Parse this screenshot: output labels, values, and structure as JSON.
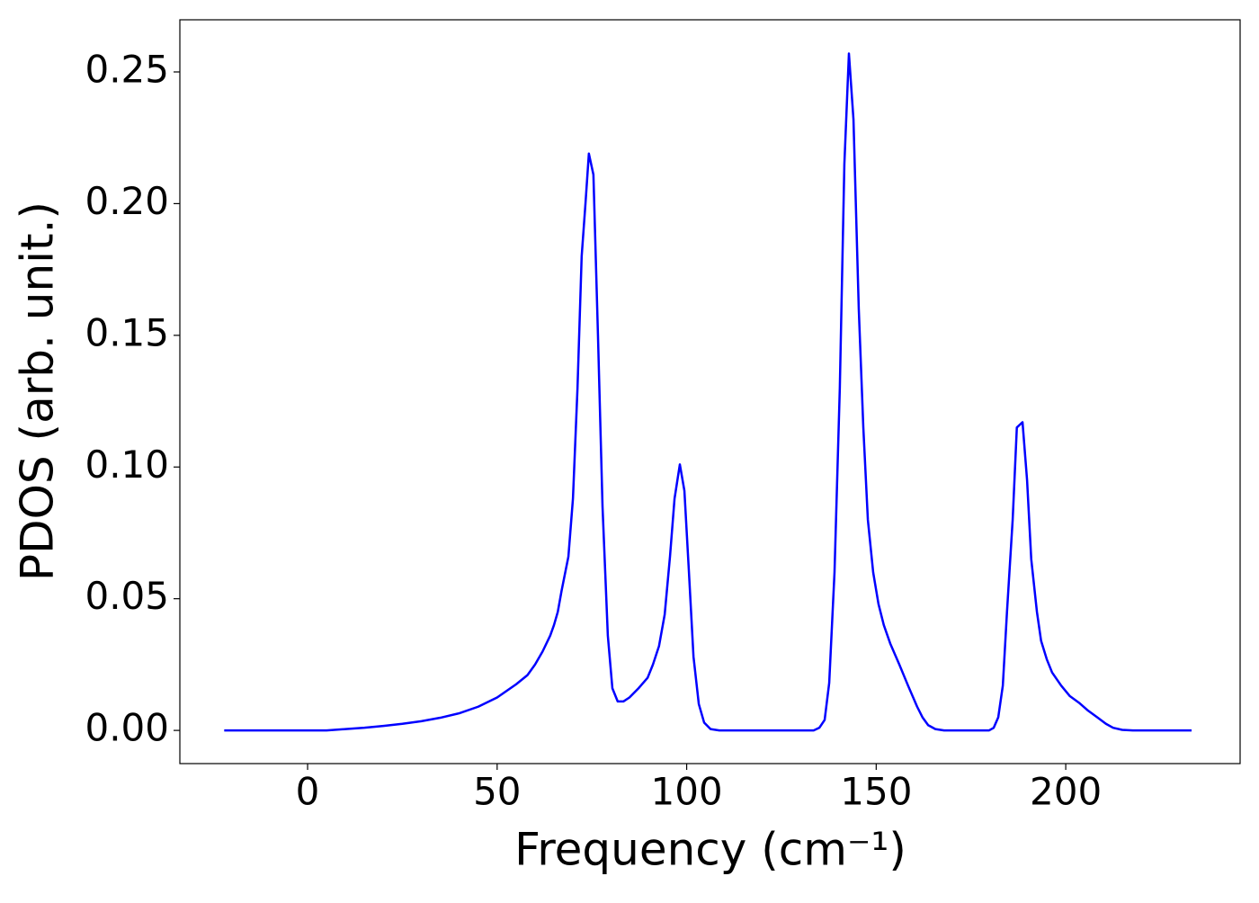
{
  "chart_data": {
    "type": "line",
    "xlabel": "Frequency (cm⁻¹)",
    "ylabel": "PDOS (arb. unit.)",
    "xlim": [
      -33.7,
      246.0
    ],
    "ylim": [
      -0.0126,
      0.2698
    ],
    "xticks": [
      0,
      50,
      100,
      150,
      200
    ],
    "yticks": [
      {
        "value": 0,
        "label": "0.00"
      },
      {
        "value": 0.05,
        "label": "0.05"
      },
      {
        "value": 0.1,
        "label": "0.10"
      },
      {
        "value": 0.15,
        "label": "0.15"
      },
      {
        "value": 0.2,
        "label": "0.20"
      },
      {
        "value": 0.25,
        "label": "0.25"
      }
    ],
    "grid": false,
    "series": [
      {
        "color": "#0000ff",
        "x": [
          -22,
          0,
          5,
          10,
          15,
          20,
          25,
          30,
          35,
          40,
          45,
          50,
          55,
          58,
          60,
          62,
          64,
          65,
          66,
          67,
          68.8,
          70,
          71.2,
          72.3,
          73.3,
          74.2,
          75.4,
          76.6,
          77.8,
          79.2,
          80.4,
          81.8,
          83.3,
          84.9,
          87.3,
          89.7,
          91.1,
          92.7,
          94.2,
          95.6,
          96.8,
          98.2,
          99.4,
          100.6,
          101.8,
          103.2,
          104.6,
          106.3,
          108.6,
          133.5,
          135,
          136.4,
          137.6,
          139,
          140.4,
          141.6,
          142.8,
          144,
          145.4,
          146.6,
          147.8,
          149.2,
          150.6,
          152,
          153.7,
          156.1,
          158.4,
          160.8,
          162.2,
          163.7,
          165.6,
          167.9,
          179.8,
          181,
          182.2,
          183.4,
          184.5,
          186,
          187.1,
          188.6,
          189.8,
          190.9,
          192.4,
          193.5,
          195,
          196.4,
          198.8,
          201.1,
          203.5,
          205.9,
          208.3,
          210.6,
          212.5,
          214.9,
          217.7,
          233.2
        ],
        "values": [
          0,
          0,
          0,
          0.0005,
          0.001,
          0.0017,
          0.0025,
          0.0035,
          0.0048,
          0.0065,
          0.009,
          0.0125,
          0.0175,
          0.021,
          0.025,
          0.03,
          0.036,
          0.04,
          0.045,
          0.053,
          0.066,
          0.088,
          0.13,
          0.18,
          0.2,
          0.219,
          0.211,
          0.15,
          0.085,
          0.036,
          0.016,
          0.011,
          0.011,
          0.0125,
          0.016,
          0.02,
          0.025,
          0.032,
          0.044,
          0.066,
          0.088,
          0.101,
          0.091,
          0.06,
          0.028,
          0.01,
          0.003,
          0.0005,
          0,
          0,
          0.001,
          0.004,
          0.018,
          0.06,
          0.13,
          0.215,
          0.257,
          0.232,
          0.16,
          0.115,
          0.08,
          0.06,
          0.048,
          0.04,
          0.033,
          0.025,
          0.017,
          0.009,
          0.005,
          0.002,
          0.0005,
          0,
          0,
          0.001,
          0.005,
          0.017,
          0.045,
          0.08,
          0.115,
          0.117,
          0.095,
          0.065,
          0.045,
          0.034,
          0.027,
          0.022,
          0.017,
          0.013,
          0.0105,
          0.0075,
          0.005,
          0.0025,
          0.001,
          0.0002,
          0,
          0
        ]
      }
    ]
  }
}
